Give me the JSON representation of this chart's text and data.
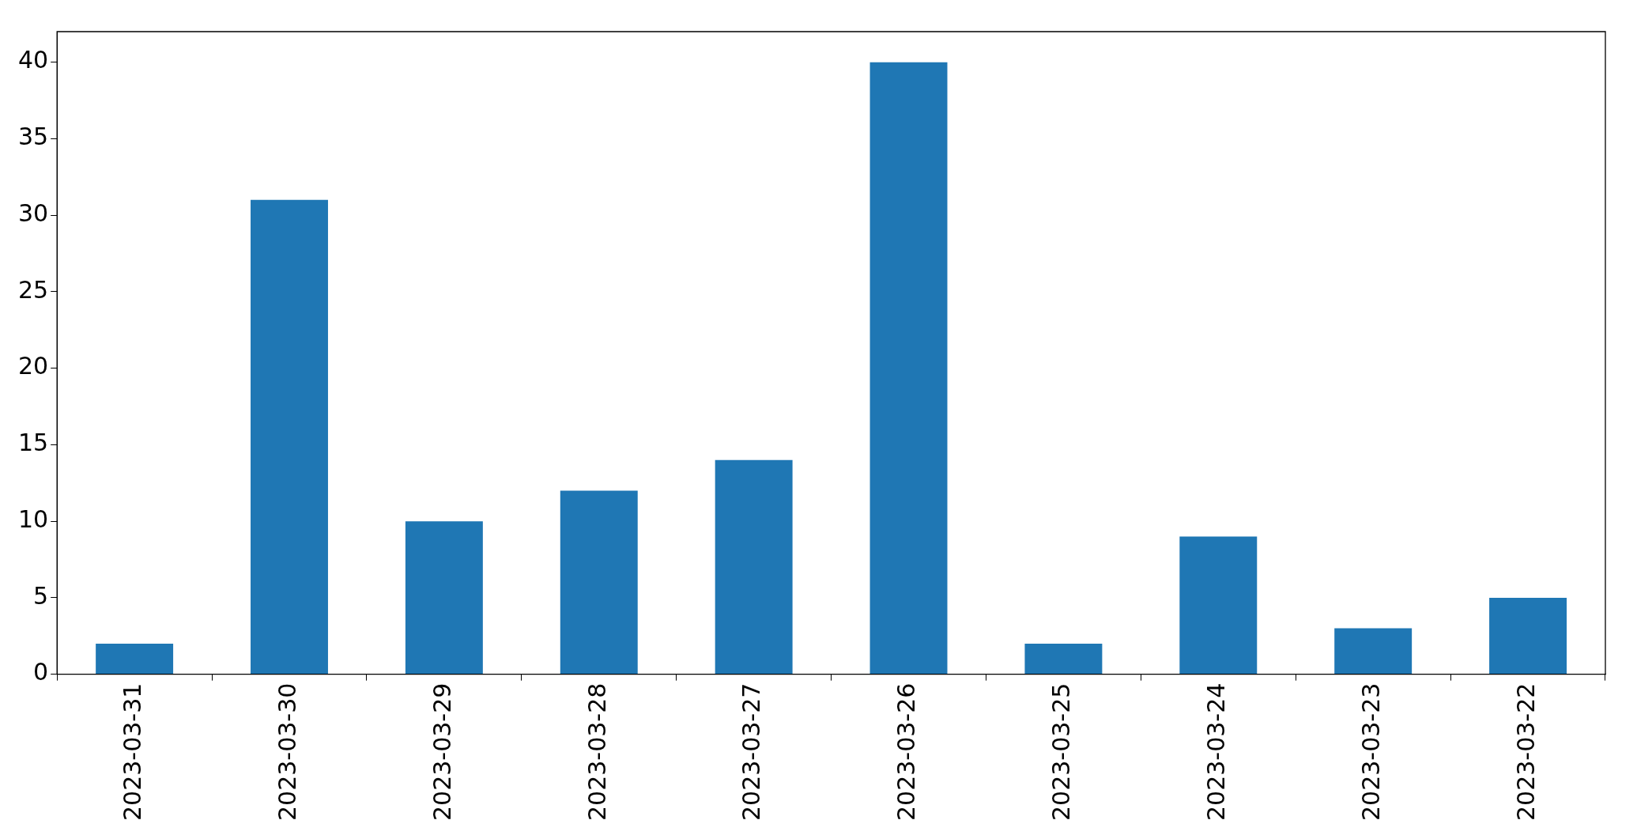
{
  "chart_data": {
    "type": "bar",
    "categories": [
      "2023-03-31",
      "2023-03-30",
      "2023-03-29",
      "2023-03-28",
      "2023-03-27",
      "2023-03-26",
      "2023-03-25",
      "2023-03-24",
      "2023-03-23",
      "2023-03-22"
    ],
    "values": [
      2,
      31,
      10,
      12,
      14,
      40,
      2,
      9,
      3,
      5
    ],
    "color": "#1f77b4",
    "ylim": [
      0,
      42
    ],
    "yticks": [
      0,
      5,
      10,
      15,
      20,
      25,
      30,
      35,
      40
    ],
    "grid": false,
    "legend": false
  }
}
